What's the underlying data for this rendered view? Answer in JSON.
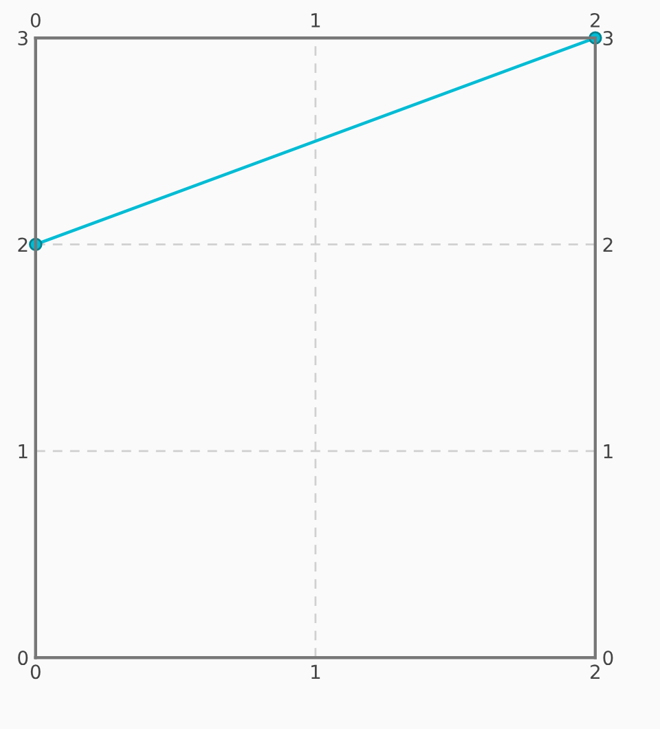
{
  "chart_data": {
    "type": "line",
    "x": [
      0,
      2
    ],
    "series": [
      {
        "color": "#00bcd4",
        "values": [
          2,
          3
        ]
      }
    ],
    "xlim": [
      0,
      2
    ],
    "xticks": [
      0,
      1,
      2
    ],
    "x2lim": [
      0,
      2
    ],
    "x2ticks": [
      0,
      1,
      2
    ],
    "ylim": [
      0,
      3
    ],
    "yticks": [
      0,
      1,
      2,
      3
    ],
    "y2lim": [
      0,
      3
    ],
    "y2ticks": [
      0,
      1,
      2,
      3
    ],
    "grid": true,
    "marker": "circle",
    "line_style": "solid"
  }
}
